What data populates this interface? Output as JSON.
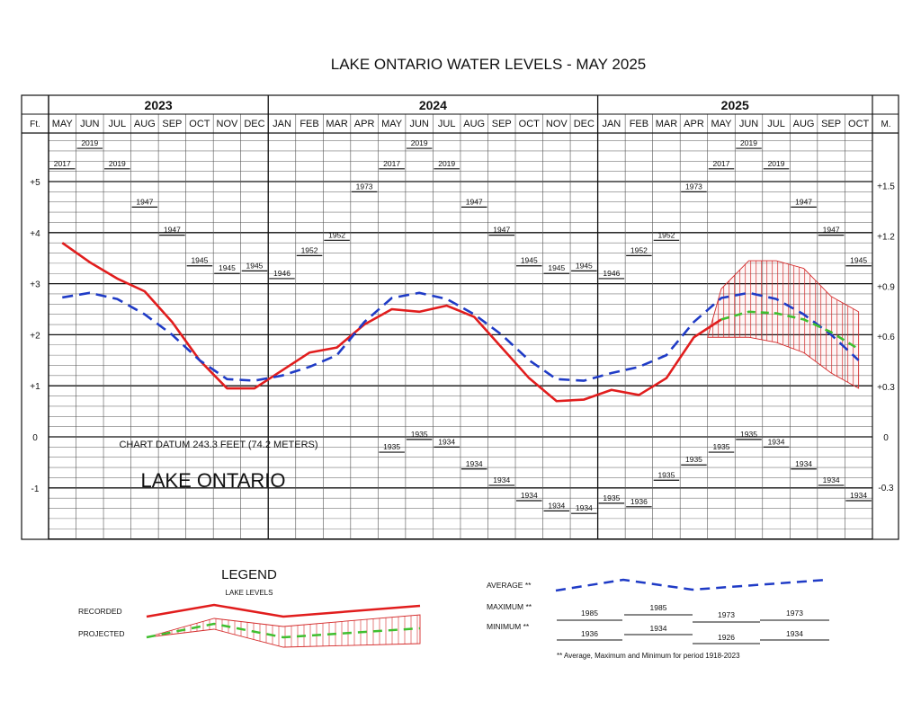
{
  "chart_data": {
    "type": "line",
    "title": "LAKE ONTARIO WATER LEVELS - MAY 2025",
    "years": [
      {
        "label": "2023",
        "start": 0,
        "span": 8
      },
      {
        "label": "2024",
        "start": 8,
        "span": 12
      },
      {
        "label": "2025",
        "start": 20,
        "span": 10
      }
    ],
    "categories": [
      "MAY",
      "JUN",
      "JUL",
      "AUG",
      "SEP",
      "OCT",
      "NOV",
      "DEC",
      "JAN",
      "FEB",
      "MAR",
      "APR",
      "MAY",
      "JUN",
      "JUL",
      "AUG",
      "SEP",
      "OCT",
      "NOV",
      "DEC",
      "JAN",
      "FEB",
      "MAR",
      "APR",
      "MAY",
      "JUN",
      "JUL",
      "AUG",
      "SEP",
      "OCT"
    ],
    "left_axis": {
      "label": "Ft.",
      "ylim": [
        -2,
        6
      ],
      "ticks": [
        {
          "value": 5,
          "label": "+5"
        },
        {
          "value": 4,
          "label": "+4"
        },
        {
          "value": 3,
          "label": "+3"
        },
        {
          "value": 2,
          "label": "+2"
        },
        {
          "value": 1,
          "label": "+1"
        },
        {
          "value": 0,
          "label": "0"
        },
        {
          "value": -1,
          "label": "-1"
        }
      ]
    },
    "right_axis": {
      "label": "M.",
      "ticks": [
        {
          "value": 1.5,
          "label": "+1.5"
        },
        {
          "value": 1.2,
          "label": "+1.2"
        },
        {
          "value": 0.9,
          "label": "+0.9"
        },
        {
          "value": 0.6,
          "label": "+0.6"
        },
        {
          "value": 0.3,
          "label": "+0.3"
        },
        {
          "value": 0,
          "label": "0"
        },
        {
          "value": -0.3,
          "label": "-0.3"
        }
      ]
    },
    "series": [
      {
        "name": "RECORDED",
        "color": "#e11d1d",
        "style": "solid",
        "x": [
          0,
          1,
          2,
          3,
          4,
          5,
          6,
          7,
          8,
          9,
          10,
          11,
          12,
          13,
          14,
          15,
          16,
          17,
          18,
          19,
          20,
          21,
          22,
          23,
          24
        ],
        "values": [
          3.8,
          3.42,
          3.1,
          2.85,
          2.25,
          1.5,
          0.95,
          0.95,
          1.3,
          1.65,
          1.75,
          2.2,
          2.5,
          2.45,
          2.57,
          2.35,
          1.75,
          1.15,
          0.7,
          0.73,
          0.92,
          0.82,
          1.15,
          1.95,
          2.3
        ]
      },
      {
        "name": "AVERAGE",
        "color": "#1f3bc6",
        "style": "dashed",
        "x": [
          0,
          1,
          2,
          3,
          4,
          5,
          6,
          7,
          8,
          9,
          10,
          11,
          12,
          13,
          14,
          15,
          16,
          17,
          18,
          19,
          20,
          21,
          22,
          23,
          24,
          25,
          26,
          27,
          28,
          29
        ],
        "values": [
          2.73,
          2.82,
          2.7,
          2.4,
          2.0,
          1.5,
          1.13,
          1.1,
          1.2,
          1.37,
          1.6,
          2.25,
          2.72,
          2.82,
          2.7,
          2.4,
          2.0,
          1.5,
          1.13,
          1.1,
          1.25,
          1.37,
          1.6,
          2.25,
          2.72,
          2.82,
          2.7,
          2.4,
          2.0,
          1.5
        ]
      },
      {
        "name": "PROJECTED",
        "color": "#3fbf2f",
        "style": "dashed",
        "x": [
          24,
          25,
          26,
          27,
          28,
          29
        ],
        "values": [
          2.3,
          2.45,
          2.42,
          2.3,
          2.05,
          1.72
        ]
      }
    ],
    "projected_range": {
      "x": [
        23.5,
        24,
        25,
        26,
        27,
        28,
        29
      ],
      "upper": [
        1.95,
        2.9,
        3.45,
        3.45,
        3.3,
        2.75,
        2.45
      ],
      "lower": [
        1.95,
        1.95,
        1.95,
        1.85,
        1.65,
        1.25,
        0.95
      ]
    },
    "max_records": [
      {
        "x": 0,
        "value": 5.25,
        "label": "2017"
      },
      {
        "x": 1,
        "value": 5.65,
        "label": "2019"
      },
      {
        "x": 2,
        "value": 5.25,
        "label": "2019"
      },
      {
        "x": 3,
        "value": 4.5,
        "label": "1947"
      },
      {
        "x": 4,
        "value": 3.95,
        "label": "1947"
      },
      {
        "x": 5,
        "value": 3.35,
        "label": "1945"
      },
      {
        "x": 6,
        "value": 3.2,
        "label": "1945"
      },
      {
        "x": 7,
        "value": 3.25,
        "label": "1945"
      },
      {
        "x": 8,
        "value": 3.1,
        "label": "1946"
      },
      {
        "x": 9,
        "value": 3.55,
        "label": "1952"
      },
      {
        "x": 10,
        "value": 3.85,
        "label": "1952"
      },
      {
        "x": 11,
        "value": 4.8,
        "label": "1973"
      },
      {
        "x": 12,
        "value": 5.25,
        "label": "2017"
      },
      {
        "x": 13,
        "value": 5.65,
        "label": "2019"
      },
      {
        "x": 14,
        "value": 5.25,
        "label": "2019"
      },
      {
        "x": 15,
        "value": 4.5,
        "label": "1947"
      },
      {
        "x": 16,
        "value": 3.95,
        "label": "1947"
      },
      {
        "x": 17,
        "value": 3.35,
        "label": "1945"
      },
      {
        "x": 18,
        "value": 3.2,
        "label": "1945"
      },
      {
        "x": 19,
        "value": 3.25,
        "label": "1945"
      },
      {
        "x": 20,
        "value": 3.1,
        "label": "1946"
      },
      {
        "x": 21,
        "value": 3.55,
        "label": "1952"
      },
      {
        "x": 22,
        "value": 3.85,
        "label": "1952"
      },
      {
        "x": 23,
        "value": 4.8,
        "label": "1973"
      },
      {
        "x": 24,
        "value": 5.25,
        "label": "2017"
      },
      {
        "x": 25,
        "value": 5.65,
        "label": "2019"
      },
      {
        "x": 26,
        "value": 5.25,
        "label": "2019"
      },
      {
        "x": 27,
        "value": 4.5,
        "label": "1947"
      },
      {
        "x": 28,
        "value": 3.95,
        "label": "1947"
      },
      {
        "x": 29,
        "value": 3.35,
        "label": "1945"
      }
    ],
    "min_records": [
      {
        "x": 12,
        "value": -0.3,
        "label": "1935"
      },
      {
        "x": 13,
        "value": -0.05,
        "label": "1935"
      },
      {
        "x": 14,
        "value": -0.2,
        "label": "1934"
      },
      {
        "x": 15,
        "value": -0.63,
        "label": "1934"
      },
      {
        "x": 16,
        "value": -0.95,
        "label": "1934"
      },
      {
        "x": 17,
        "value": -1.25,
        "label": "1934"
      },
      {
        "x": 18,
        "value": -1.45,
        "label": "1934"
      },
      {
        "x": 19,
        "value": -1.5,
        "label": "1934"
      },
      {
        "x": 20,
        "value": -1.3,
        "label": "1935"
      },
      {
        "x": 21,
        "value": -1.37,
        "label": "1936"
      },
      {
        "x": 22,
        "value": -0.85,
        "label": "1935"
      },
      {
        "x": 23,
        "value": -0.55,
        "label": "1935"
      },
      {
        "x": 24,
        "value": -0.3,
        "label": "1935"
      },
      {
        "x": 25,
        "value": -0.05,
        "label": "1935"
      },
      {
        "x": 26,
        "value": -0.2,
        "label": "1934"
      },
      {
        "x": 27,
        "value": -0.63,
        "label": "1934"
      },
      {
        "x": 28,
        "value": -0.95,
        "label": "1934"
      },
      {
        "x": 29,
        "value": -1.25,
        "label": "1934"
      }
    ],
    "annotations": {
      "datum": "CHART DATUM  243.3 FEET (74.2 METERS)",
      "lake": "LAKE ONTARIO"
    },
    "grid": true
  },
  "legend": {
    "title": "LEGEND",
    "subtitle": "LAKE LEVELS",
    "recorded_label": "RECORDED",
    "projected_label": "PROJECTED",
    "average_label": "AVERAGE **",
    "maximum_label": "MAXIMUM **",
    "minimum_label": "MINIMUM **",
    "max_samples": [
      "1985",
      "1985",
      "1973",
      "1973"
    ],
    "min_samples": [
      "1936",
      "1934",
      "1926",
      "1934"
    ],
    "footnote": "** Average, Maximum and Minimum for period 1918-2023"
  }
}
